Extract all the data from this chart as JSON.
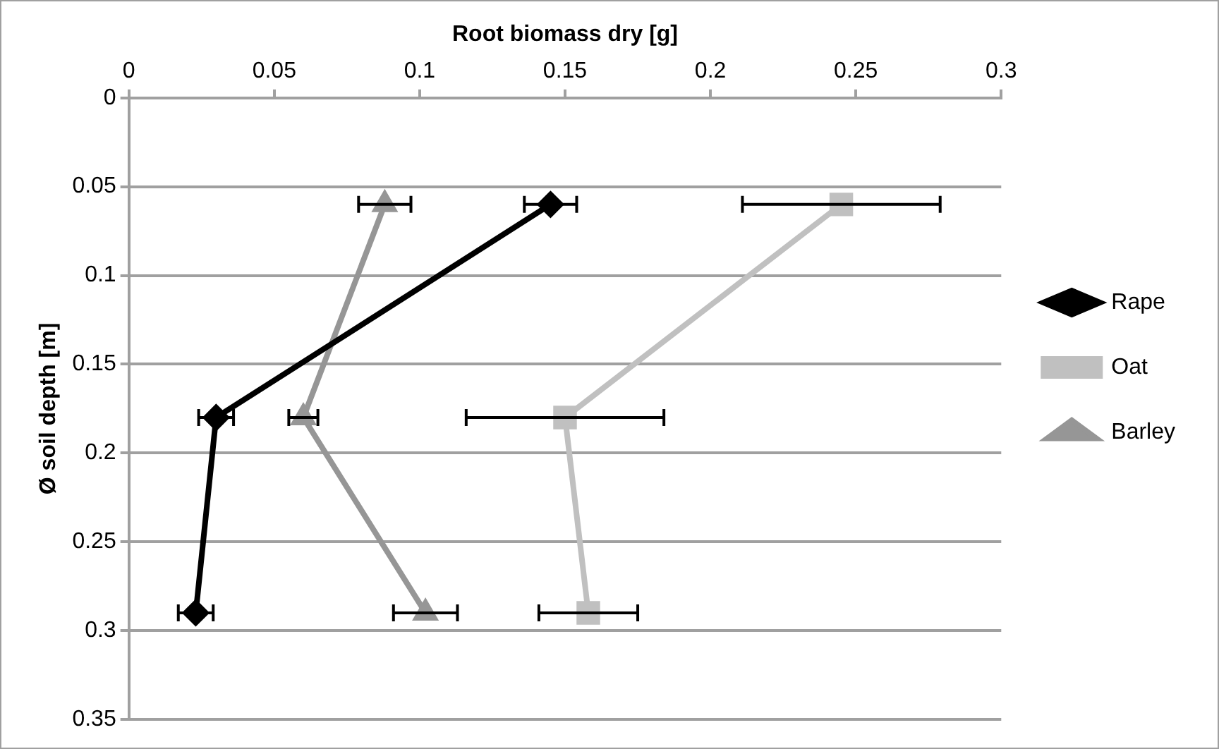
{
  "chart_data": {
    "type": "line",
    "xlabel": "Root biomass dry [g]",
    "ylabel": "Ø soil depth [m]",
    "xlim": [
      0,
      0.3
    ],
    "xticks": [
      0,
      0.05,
      0.1,
      0.15,
      0.2,
      0.25,
      0.3
    ],
    "ylim": [
      0.35,
      0
    ],
    "yticks": [
      0,
      0.05,
      0.1,
      0.15,
      0.2,
      0.25,
      0.3,
      0.35
    ],
    "grid": "y",
    "legend": "right",
    "series": [
      {
        "name": "Rape",
        "color": "#000000",
        "marker": "diamond",
        "x": [
          0.145,
          0.03,
          0.023
        ],
        "values": [
          0.06,
          0.18,
          0.29
        ],
        "xerrors": [
          0.009,
          0.006,
          0.006
        ]
      },
      {
        "name": "Oat",
        "color": "#c0c0c0",
        "marker": "square",
        "x": [
          0.245,
          0.15,
          0.158
        ],
        "values": [
          0.06,
          0.18,
          0.29
        ],
        "xerrors": [
          0.034,
          0.034,
          0.017
        ]
      },
      {
        "name": "Barley",
        "color": "#969696",
        "marker": "triangle",
        "x": [
          0.088,
          0.06,
          0.102
        ],
        "values": [
          0.06,
          0.18,
          0.29
        ],
        "xerrors": [
          0.009,
          0.005,
          0.011
        ]
      }
    ]
  }
}
